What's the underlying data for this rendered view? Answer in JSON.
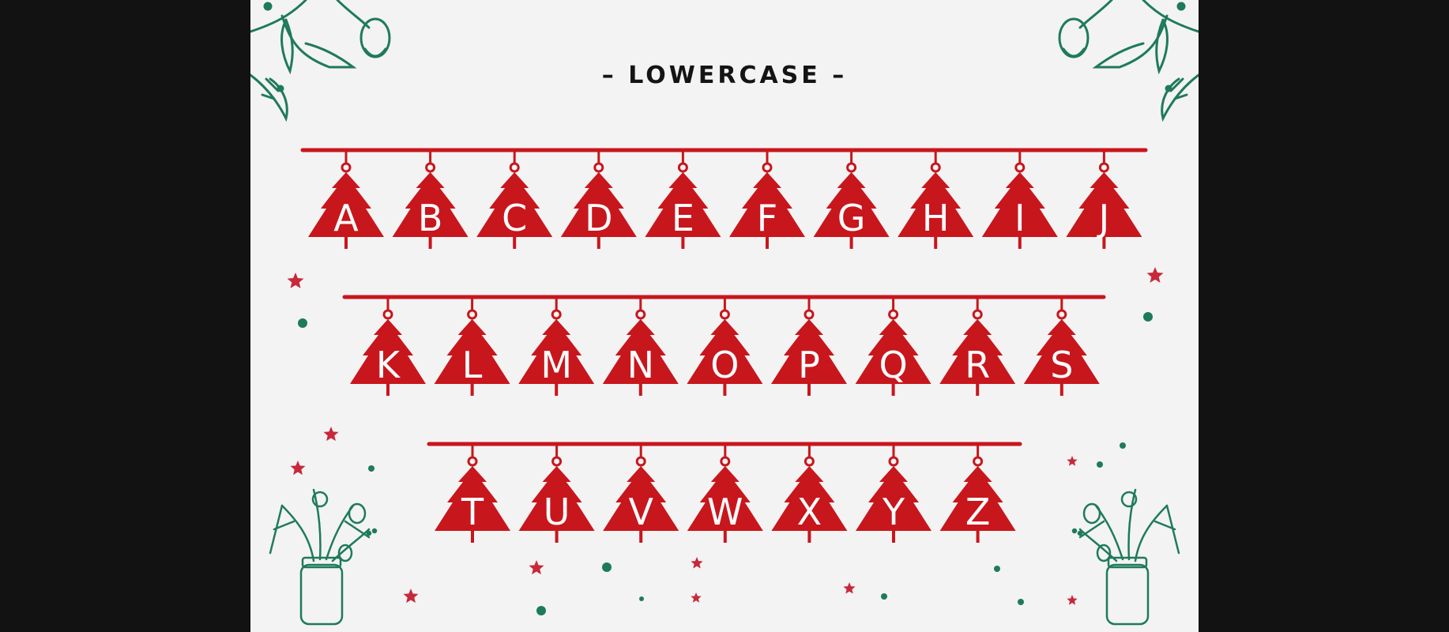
{
  "title": "– LOWERCASE –",
  "rows": [
    [
      "A",
      "B",
      "C",
      "D",
      "E",
      "F",
      "G",
      "H",
      "I",
      "J"
    ],
    [
      "K",
      "L",
      "M",
      "N",
      "O",
      "P",
      "Q",
      "R",
      "S"
    ],
    [
      "T",
      "U",
      "V",
      "W",
      "X",
      "Y",
      "Z"
    ]
  ],
  "colors": {
    "background": "#f3f3f3",
    "frame": "#121212",
    "tree_red": "#c8161d",
    "letter": "#ffffff",
    "botanical_green": "#1e7a5c",
    "star_red": "#c8283a"
  },
  "icons": [
    "christmas-tree-icon",
    "star-icon",
    "dot-icon",
    "floral-branch-icon",
    "flower-jar-icon"
  ]
}
